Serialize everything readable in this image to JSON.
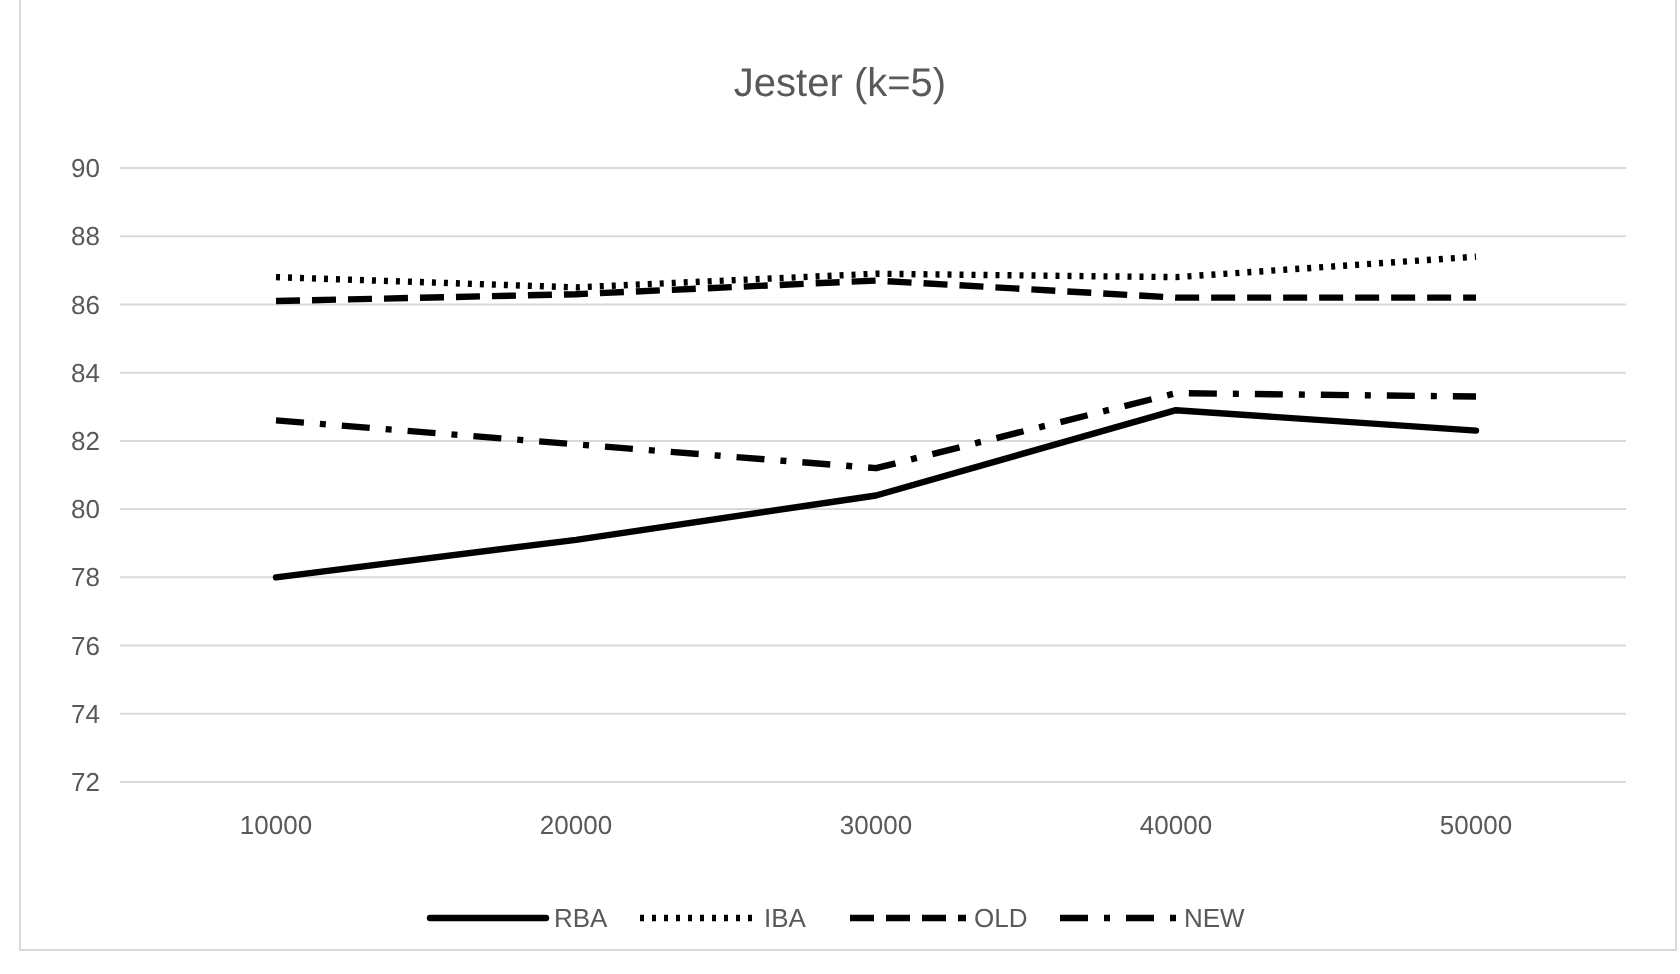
{
  "chart_data": {
    "type": "line",
    "title": "Jester (k=5)",
    "categories": [
      "10000",
      "20000",
      "30000",
      "40000",
      "50000"
    ],
    "ylim": [
      72,
      90
    ],
    "yticks": [
      72,
      74,
      76,
      78,
      80,
      82,
      84,
      86,
      88,
      90
    ],
    "grid": "y",
    "legend": "bottom",
    "marker": "none",
    "series": [
      {
        "name": "RBA",
        "color": "#000000",
        "line_style": "solid",
        "values": [
          78.0,
          79.1,
          80.4,
          82.9,
          82.3
        ]
      },
      {
        "name": "IBA",
        "color": "#000000",
        "line_style": "dotted",
        "values": [
          86.8,
          86.5,
          86.9,
          86.8,
          87.4
        ]
      },
      {
        "name": "OLD",
        "color": "#000000",
        "line_style": "dashed",
        "values": [
          86.1,
          86.3,
          86.7,
          86.2,
          86.2
        ]
      },
      {
        "name": "NEW",
        "color": "#000000",
        "line_style": "dashdot",
        "values": [
          82.6,
          81.9,
          81.2,
          83.4,
          83.3
        ]
      }
    ]
  }
}
